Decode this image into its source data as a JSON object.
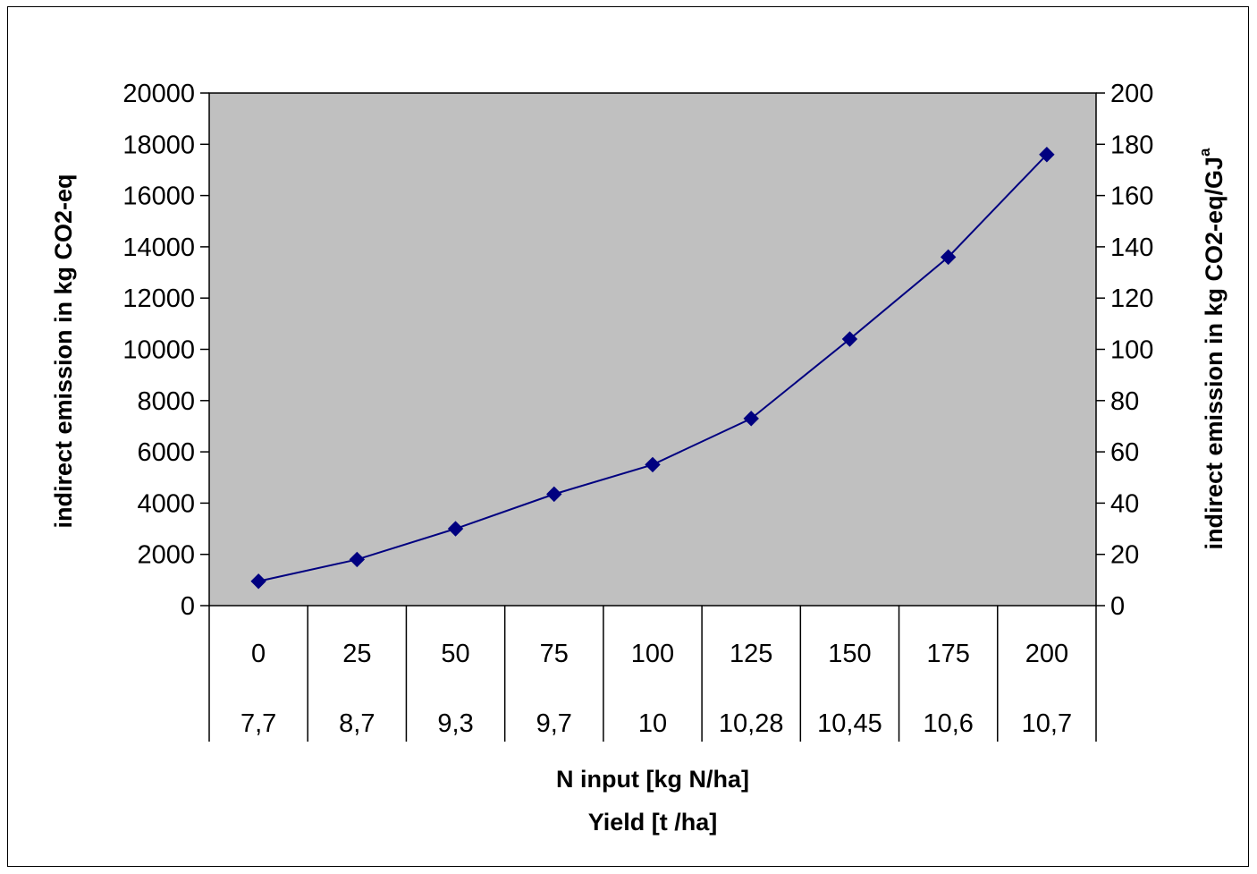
{
  "chart_data": {
    "type": "line",
    "title": "",
    "plot_background": "#c0c0c0",
    "series_color": "#000080",
    "grid": false,
    "legend": "none",
    "categories": [
      "0",
      "25",
      "50",
      "75",
      "100",
      "125",
      "150",
      "175",
      "200"
    ],
    "secondary_categories": [
      "7,7",
      "8,7",
      "9,3",
      "9,7",
      "10",
      "10,28",
      "10,45",
      "10,6",
      "10,7"
    ],
    "series": [
      {
        "marker": "diamond",
        "values": [
          950,
          1800,
          3000,
          4350,
          5500,
          7300,
          10400,
          13600,
          17600
        ]
      }
    ],
    "y_left": {
      "label": "indirect emission in kg CO2-eq",
      "ylim": [
        0,
        20000
      ],
      "ticks": [
        "0",
        "2000",
        "4000",
        "6000",
        "8000",
        "10000",
        "12000",
        "14000",
        "16000",
        "18000",
        "20000"
      ]
    },
    "y_right": {
      "label": "indirect emission in kg CO2-eq/GJ",
      "superscript": "a",
      "ylim": [
        0,
        200
      ],
      "ticks": [
        "0",
        "20",
        "40",
        "60",
        "80",
        "100",
        "120",
        "140",
        "160",
        "180",
        "200"
      ]
    },
    "xlabel_line1": "N input [kg N/ha]",
    "xlabel_line2": "Yield [t /ha]"
  }
}
